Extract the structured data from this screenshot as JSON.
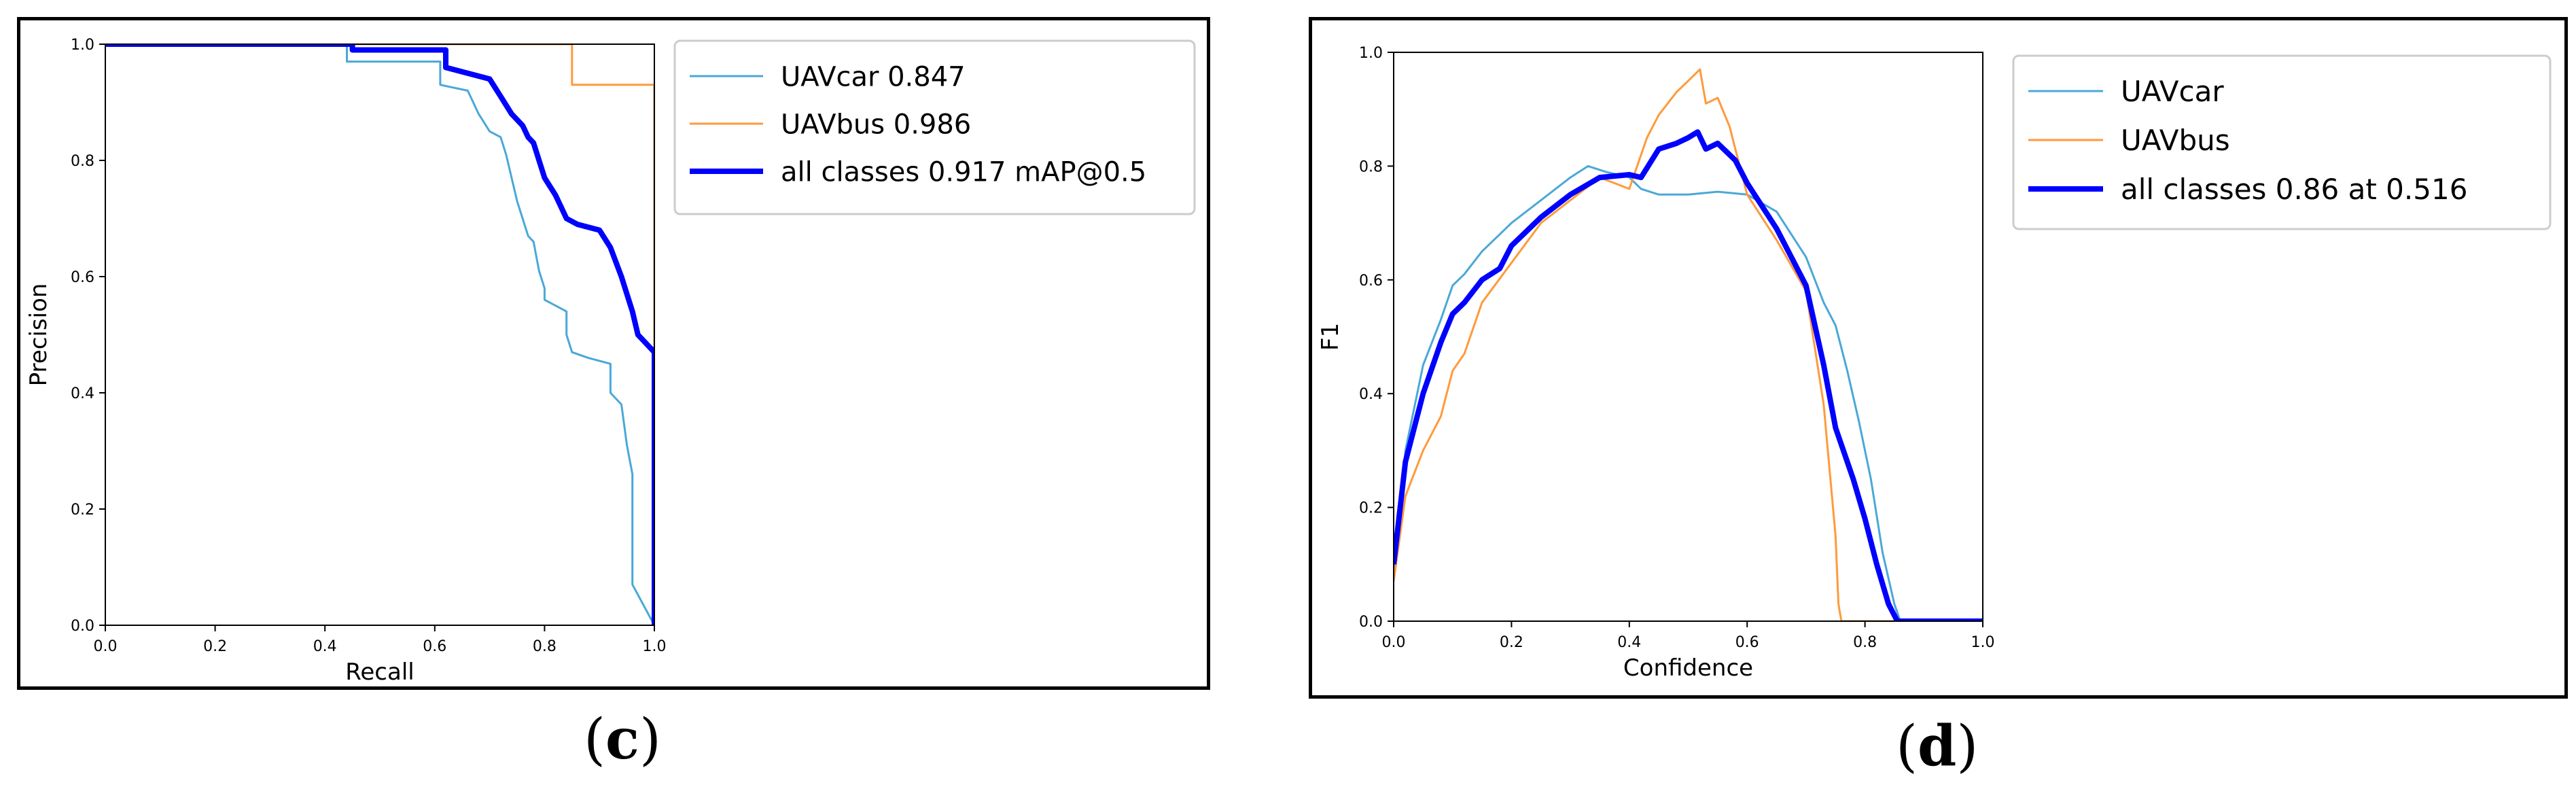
{
  "captions": {
    "c_prefix": "(",
    "c_letter": "c",
    "c_suffix": ")",
    "d_prefix": "(",
    "d_letter": "d",
    "d_suffix": ")"
  },
  "colors": {
    "car": "#4aa8d8",
    "bus": "#ff9a3c",
    "all": "#0000ff",
    "axis": "#000000"
  },
  "chart_data": [
    {
      "type": "line",
      "xlabel": "Recall",
      "ylabel": "Precision",
      "xlim": [
        0,
        1
      ],
      "ylim": [
        0,
        1
      ],
      "xticks": [
        "0.0",
        "0.2",
        "0.4",
        "0.6",
        "0.8",
        "1.0"
      ],
      "yticks": [
        "0.0",
        "0.2",
        "0.4",
        "0.6",
        "0.8",
        "1.0"
      ],
      "grid": false,
      "legend_position": "outside-right-top",
      "series": [
        {
          "name": "UAVcar 0.847",
          "color_key": "car",
          "width": 3,
          "x": [
            0.0,
            0.44,
            0.44,
            0.61,
            0.61,
            0.66,
            0.68,
            0.7,
            0.72,
            0.73,
            0.74,
            0.75,
            0.76,
            0.77,
            0.78,
            0.79,
            0.8,
            0.8,
            0.82,
            0.84,
            0.84,
            0.85,
            0.88,
            0.92,
            0.92,
            0.94,
            0.95,
            0.96,
            0.96,
            1.0
          ],
          "y": [
            1.0,
            1.0,
            0.97,
            0.97,
            0.93,
            0.92,
            0.88,
            0.85,
            0.84,
            0.81,
            0.77,
            0.73,
            0.7,
            0.67,
            0.66,
            0.61,
            0.58,
            0.56,
            0.55,
            0.54,
            0.5,
            0.47,
            0.46,
            0.45,
            0.4,
            0.38,
            0.31,
            0.26,
            0.07,
            0.0
          ]
        },
        {
          "name": "UAVbus 0.986",
          "color_key": "bus",
          "width": 3,
          "x": [
            0.0,
            0.85,
            0.85,
            1.0,
            1.0
          ],
          "y": [
            1.0,
            1.0,
            0.93,
            0.93,
            0.47
          ]
        },
        {
          "name": "all classes 0.917 mAP@0.5",
          "color_key": "all",
          "width": 8,
          "x": [
            0.0,
            0.45,
            0.45,
            0.62,
            0.62,
            0.7,
            0.72,
            0.74,
            0.76,
            0.77,
            0.78,
            0.79,
            0.8,
            0.82,
            0.84,
            0.86,
            0.9,
            0.92,
            0.94,
            0.95,
            0.96,
            0.97,
            0.99,
            1.0,
            1.0
          ],
          "y": [
            1.0,
            1.0,
            0.99,
            0.99,
            0.96,
            0.94,
            0.91,
            0.88,
            0.86,
            0.84,
            0.83,
            0.8,
            0.77,
            0.74,
            0.7,
            0.69,
            0.68,
            0.65,
            0.6,
            0.57,
            0.54,
            0.5,
            0.48,
            0.47,
            0.0
          ]
        }
      ]
    },
    {
      "type": "line",
      "xlabel": "Confidence",
      "ylabel": "F1",
      "xlim": [
        0,
        1
      ],
      "ylim": [
        0,
        1
      ],
      "xticks": [
        "0.0",
        "0.2",
        "0.4",
        "0.6",
        "0.8",
        "1.0"
      ],
      "yticks": [
        "0.0",
        "0.2",
        "0.4",
        "0.6",
        "0.8",
        "1.0"
      ],
      "grid": false,
      "legend_position": "outside-right-top",
      "series": [
        {
          "name": "UAVcar",
          "color_key": "car",
          "width": 3,
          "x": [
            0.0,
            0.02,
            0.05,
            0.08,
            0.1,
            0.12,
            0.15,
            0.18,
            0.2,
            0.25,
            0.3,
            0.33,
            0.36,
            0.4,
            0.42,
            0.45,
            0.5,
            0.55,
            0.6,
            0.65,
            0.7,
            0.73,
            0.75,
            0.77,
            0.79,
            0.81,
            0.83,
            0.85,
            0.86,
            1.0
          ],
          "y": [
            0.09,
            0.3,
            0.45,
            0.53,
            0.59,
            0.61,
            0.65,
            0.68,
            0.7,
            0.74,
            0.78,
            0.8,
            0.79,
            0.78,
            0.76,
            0.75,
            0.75,
            0.755,
            0.75,
            0.72,
            0.64,
            0.56,
            0.52,
            0.44,
            0.35,
            0.25,
            0.12,
            0.03,
            0.0,
            0.0
          ]
        },
        {
          "name": "UAVbus",
          "color_key": "bus",
          "width": 3,
          "x": [
            0.0,
            0.02,
            0.05,
            0.08,
            0.1,
            0.12,
            0.15,
            0.2,
            0.25,
            0.3,
            0.35,
            0.4,
            0.43,
            0.45,
            0.48,
            0.5,
            0.52,
            0.53,
            0.55,
            0.57,
            0.6,
            0.65,
            0.7,
            0.73,
            0.75,
            0.755,
            0.76,
            1.0
          ],
          "y": [
            0.07,
            0.22,
            0.3,
            0.36,
            0.44,
            0.47,
            0.56,
            0.63,
            0.7,
            0.74,
            0.78,
            0.76,
            0.85,
            0.89,
            0.93,
            0.95,
            0.97,
            0.91,
            0.92,
            0.87,
            0.75,
            0.67,
            0.58,
            0.38,
            0.15,
            0.03,
            0.0,
            0.0
          ]
        },
        {
          "name": "all classes 0.86 at 0.516",
          "color_key": "all",
          "width": 8,
          "x": [
            0.0,
            0.02,
            0.05,
            0.08,
            0.1,
            0.12,
            0.15,
            0.18,
            0.2,
            0.25,
            0.3,
            0.35,
            0.4,
            0.42,
            0.45,
            0.48,
            0.5,
            0.516,
            0.53,
            0.55,
            0.58,
            0.6,
            0.65,
            0.7,
            0.73,
            0.75,
            0.78,
            0.8,
            0.82,
            0.84,
            0.855,
            1.0
          ],
          "y": [
            0.1,
            0.28,
            0.4,
            0.49,
            0.54,
            0.56,
            0.6,
            0.62,
            0.66,
            0.71,
            0.75,
            0.78,
            0.785,
            0.78,
            0.83,
            0.84,
            0.85,
            0.86,
            0.83,
            0.84,
            0.81,
            0.77,
            0.69,
            0.59,
            0.45,
            0.34,
            0.25,
            0.18,
            0.1,
            0.03,
            0.0,
            0.0
          ]
        }
      ]
    }
  ]
}
